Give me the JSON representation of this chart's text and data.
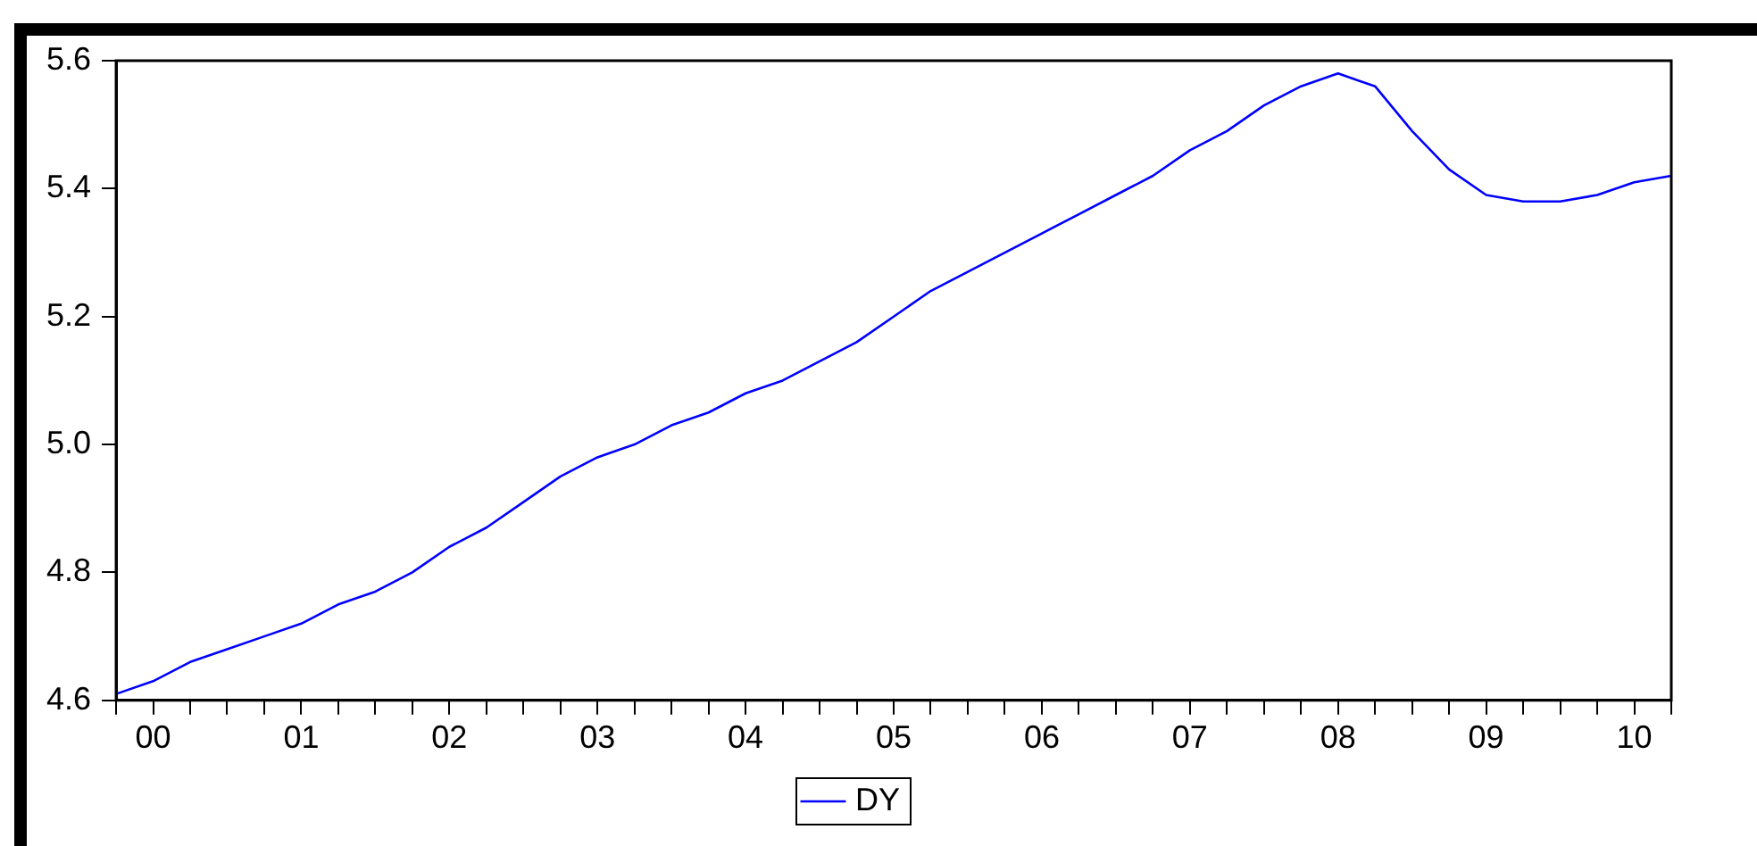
{
  "chart_data": {
    "type": "line",
    "categories": [
      null,
      "00",
      null,
      null,
      null,
      "01",
      null,
      null,
      null,
      "02",
      null,
      null,
      null,
      "03",
      null,
      null,
      null,
      "04",
      null,
      null,
      null,
      "05",
      null,
      null,
      null,
      "06",
      null,
      null,
      null,
      "07",
      null,
      null,
      null,
      "08",
      null,
      null,
      null,
      "09",
      null,
      null,
      null,
      "10",
      null
    ],
    "series": [
      {
        "name": "DY",
        "color": "#0000ff",
        "values": [
          4.61,
          4.63,
          4.66,
          4.68,
          4.7,
          4.72,
          4.75,
          4.77,
          4.8,
          4.84,
          4.87,
          4.91,
          4.95,
          4.98,
          5.0,
          5.03,
          5.05,
          5.08,
          5.1,
          5.13,
          5.16,
          5.2,
          5.24,
          5.27,
          5.3,
          5.33,
          5.36,
          5.39,
          5.42,
          5.46,
          5.49,
          5.53,
          5.56,
          5.58,
          5.56,
          5.49,
          5.43,
          5.39,
          5.38,
          5.38,
          5.39,
          5.41,
          5.42
        ]
      }
    ],
    "ylim": [
      4.6,
      5.6
    ],
    "yticks": [
      {
        "value": 4.6,
        "label": "4.6"
      },
      {
        "value": 4.8,
        "label": "4.8"
      },
      {
        "value": 5.0,
        "label": "5.0"
      },
      {
        "value": 5.2,
        "label": "5.2"
      },
      {
        "value": 5.4,
        "label": "5.4"
      },
      {
        "value": 5.6,
        "label": "5.6"
      }
    ],
    "legend": "bottom",
    "marker": "none",
    "line_style": "solid"
  }
}
